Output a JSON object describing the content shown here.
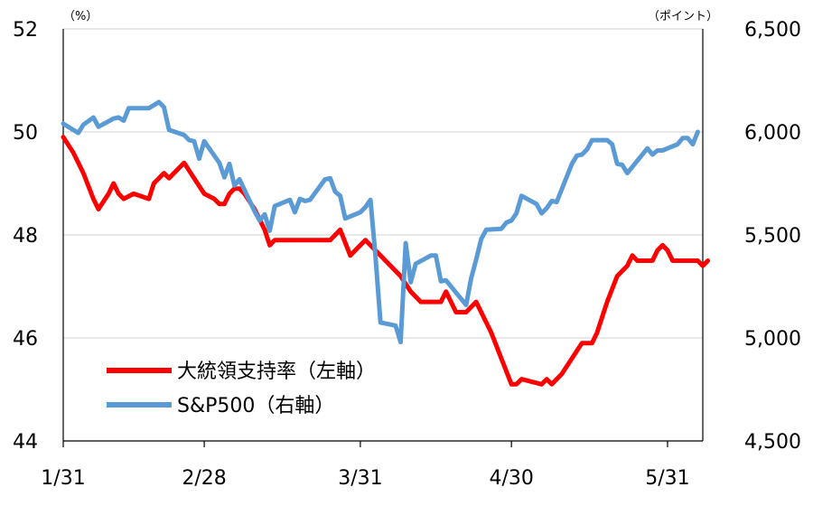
{
  "chart_data": {
    "type": "line",
    "left_axis": {
      "unit": "（%）",
      "min": 44,
      "max": 52,
      "ticks": [
        "52",
        "50",
        "48",
        "46",
        "44"
      ]
    },
    "right_axis": {
      "unit": "（ポイント）",
      "min": 4500,
      "max": 6500,
      "ticks": [
        "6,500",
        "6,000",
        "5,500",
        "5,000",
        "4,500"
      ]
    },
    "x_ticks": [
      "1/31",
      "2/28",
      "3/31",
      "4/30",
      "5/31"
    ],
    "x_range": [
      "01-31",
      "06-07"
    ],
    "grid": "horizontal",
    "legend_position": "lower-left",
    "series": [
      {
        "name": "大統領支持率（左軸）",
        "axis": "left",
        "color": "#ff0000",
        "points": [
          [
            "01-31",
            49.9
          ],
          [
            "02-02",
            49.6
          ],
          [
            "02-04",
            49.2
          ],
          [
            "02-06",
            48.7
          ],
          [
            "02-07",
            48.5
          ],
          [
            "02-09",
            48.8
          ],
          [
            "02-10",
            49.0
          ],
          [
            "02-11",
            48.8
          ],
          [
            "02-12",
            48.7
          ],
          [
            "02-14",
            48.8
          ],
          [
            "02-17",
            48.7
          ],
          [
            "02-18",
            49.0
          ],
          [
            "02-20",
            49.2
          ],
          [
            "02-21",
            49.1
          ],
          [
            "02-23",
            49.3
          ],
          [
            "02-24",
            49.4
          ],
          [
            "02-26",
            49.1
          ],
          [
            "02-28",
            48.8
          ],
          [
            "03-02",
            48.7
          ],
          [
            "03-03",
            48.6
          ],
          [
            "03-04",
            48.6
          ],
          [
            "03-05",
            48.8
          ],
          [
            "03-06",
            48.9
          ],
          [
            "03-07",
            48.9
          ],
          [
            "03-08",
            48.8
          ],
          [
            "03-10",
            48.5
          ],
          [
            "03-12",
            48.1
          ],
          [
            "03-13",
            47.8
          ],
          [
            "03-14",
            47.9
          ],
          [
            "03-21",
            47.9
          ],
          [
            "03-25",
            47.9
          ],
          [
            "03-27",
            48.1
          ],
          [
            "03-29",
            47.6
          ],
          [
            "03-31",
            47.8
          ],
          [
            "04-01",
            47.9
          ],
          [
            "04-04",
            47.6
          ],
          [
            "04-06",
            47.4
          ],
          [
            "04-08",
            47.2
          ],
          [
            "04-10",
            46.9
          ],
          [
            "04-12",
            46.7
          ],
          [
            "04-16",
            46.7
          ],
          [
            "04-17",
            46.9
          ],
          [
            "04-19",
            46.5
          ],
          [
            "04-21",
            46.5
          ],
          [
            "04-23",
            46.7
          ],
          [
            "04-25",
            46.3
          ],
          [
            "04-26",
            46.1
          ],
          [
            "04-28",
            45.6
          ],
          [
            "04-30",
            45.1
          ],
          [
            "05-01",
            45.1
          ],
          [
            "05-02",
            45.2
          ],
          [
            "05-06",
            45.1
          ],
          [
            "05-07",
            45.2
          ],
          [
            "05-08",
            45.1
          ],
          [
            "05-10",
            45.3
          ],
          [
            "05-12",
            45.6
          ],
          [
            "05-14",
            45.9
          ],
          [
            "05-16",
            45.9
          ],
          [
            "05-17",
            46.1
          ],
          [
            "05-19",
            46.7
          ],
          [
            "05-21",
            47.2
          ],
          [
            "05-22",
            47.3
          ],
          [
            "05-23",
            47.4
          ],
          [
            "05-24",
            47.6
          ],
          [
            "05-25",
            47.5
          ],
          [
            "05-28",
            47.5
          ],
          [
            "05-29",
            47.7
          ],
          [
            "05-30",
            47.8
          ],
          [
            "05-31",
            47.7
          ],
          [
            "06-01",
            47.5
          ],
          [
            "06-06",
            47.5
          ],
          [
            "06-07",
            47.4
          ],
          [
            "06-08",
            47.5
          ]
        ]
      },
      {
        "name": "S&P500（右軸）",
        "axis": "right",
        "color": "#5b9bd5",
        "points": [
          [
            "01-31",
            6040
          ],
          [
            "02-02",
            6010
          ],
          [
            "02-03",
            5995
          ],
          [
            "02-04",
            6035
          ],
          [
            "02-06",
            6070
          ],
          [
            "02-07",
            6025
          ],
          [
            "02-10",
            6065
          ],
          [
            "02-11",
            6070
          ],
          [
            "02-12",
            6055
          ],
          [
            "02-13",
            6115
          ],
          [
            "02-17",
            6115
          ],
          [
            "02-18",
            6130
          ],
          [
            "02-19",
            6145
          ],
          [
            "02-20",
            6120
          ],
          [
            "02-21",
            6010
          ],
          [
            "02-24",
            5985
          ],
          [
            "02-25",
            5960
          ],
          [
            "02-26",
            5955
          ],
          [
            "02-27",
            5870
          ],
          [
            "02-28",
            5955
          ],
          [
            "03-03",
            5850
          ],
          [
            "03-04",
            5780
          ],
          [
            "03-05",
            5845
          ],
          [
            "03-06",
            5740
          ],
          [
            "03-07",
            5770
          ],
          [
            "03-10",
            5615
          ],
          [
            "03-11",
            5570
          ],
          [
            "03-12",
            5600
          ],
          [
            "03-13",
            5520
          ],
          [
            "03-14",
            5640
          ],
          [
            "03-17",
            5670
          ],
          [
            "03-18",
            5610
          ],
          [
            "03-19",
            5675
          ],
          [
            "03-20",
            5665
          ],
          [
            "03-21",
            5670
          ],
          [
            "03-24",
            5770
          ],
          [
            "03-25",
            5775
          ],
          [
            "03-26",
            5710
          ],
          [
            "03-27",
            5690
          ],
          [
            "03-28",
            5580
          ],
          [
            "03-31",
            5610
          ],
          [
            "04-01",
            5635
          ],
          [
            "04-02",
            5670
          ],
          [
            "04-03",
            5400
          ],
          [
            "04-04",
            5075
          ],
          [
            "04-07",
            5060
          ],
          [
            "04-08",
            4980
          ],
          [
            "04-09",
            5460
          ],
          [
            "04-10",
            5270
          ],
          [
            "04-11",
            5360
          ],
          [
            "04-14",
            5400
          ],
          [
            "04-15",
            5400
          ],
          [
            "04-16",
            5275
          ],
          [
            "04-17",
            5280
          ],
          [
            "04-21",
            5160
          ],
          [
            "04-22",
            5290
          ],
          [
            "04-23",
            5380
          ],
          [
            "04-24",
            5480
          ],
          [
            "04-25",
            5525
          ],
          [
            "04-28",
            5530
          ],
          [
            "04-29",
            5560
          ],
          [
            "04-30",
            5570
          ],
          [
            "05-01",
            5605
          ],
          [
            "05-02",
            5690
          ],
          [
            "05-05",
            5650
          ],
          [
            "05-06",
            5605
          ],
          [
            "05-07",
            5630
          ],
          [
            "05-08",
            5665
          ],
          [
            "05-09",
            5660
          ],
          [
            "05-12",
            5845
          ],
          [
            "05-13",
            5885
          ],
          [
            "05-14",
            5890
          ],
          [
            "05-15",
            5915
          ],
          [
            "05-16",
            5960
          ],
          [
            "05-19",
            5960
          ],
          [
            "05-20",
            5940
          ],
          [
            "05-21",
            5845
          ],
          [
            "05-22",
            5840
          ],
          [
            "05-23",
            5800
          ],
          [
            "05-27",
            5920
          ],
          [
            "05-28",
            5890
          ],
          [
            "05-29",
            5910
          ],
          [
            "05-30",
            5910
          ],
          [
            "06-02",
            5940
          ],
          [
            "06-03",
            5970
          ],
          [
            "06-04",
            5970
          ],
          [
            "06-05",
            5940
          ],
          [
            "06-06",
            6000
          ]
        ]
      }
    ]
  }
}
